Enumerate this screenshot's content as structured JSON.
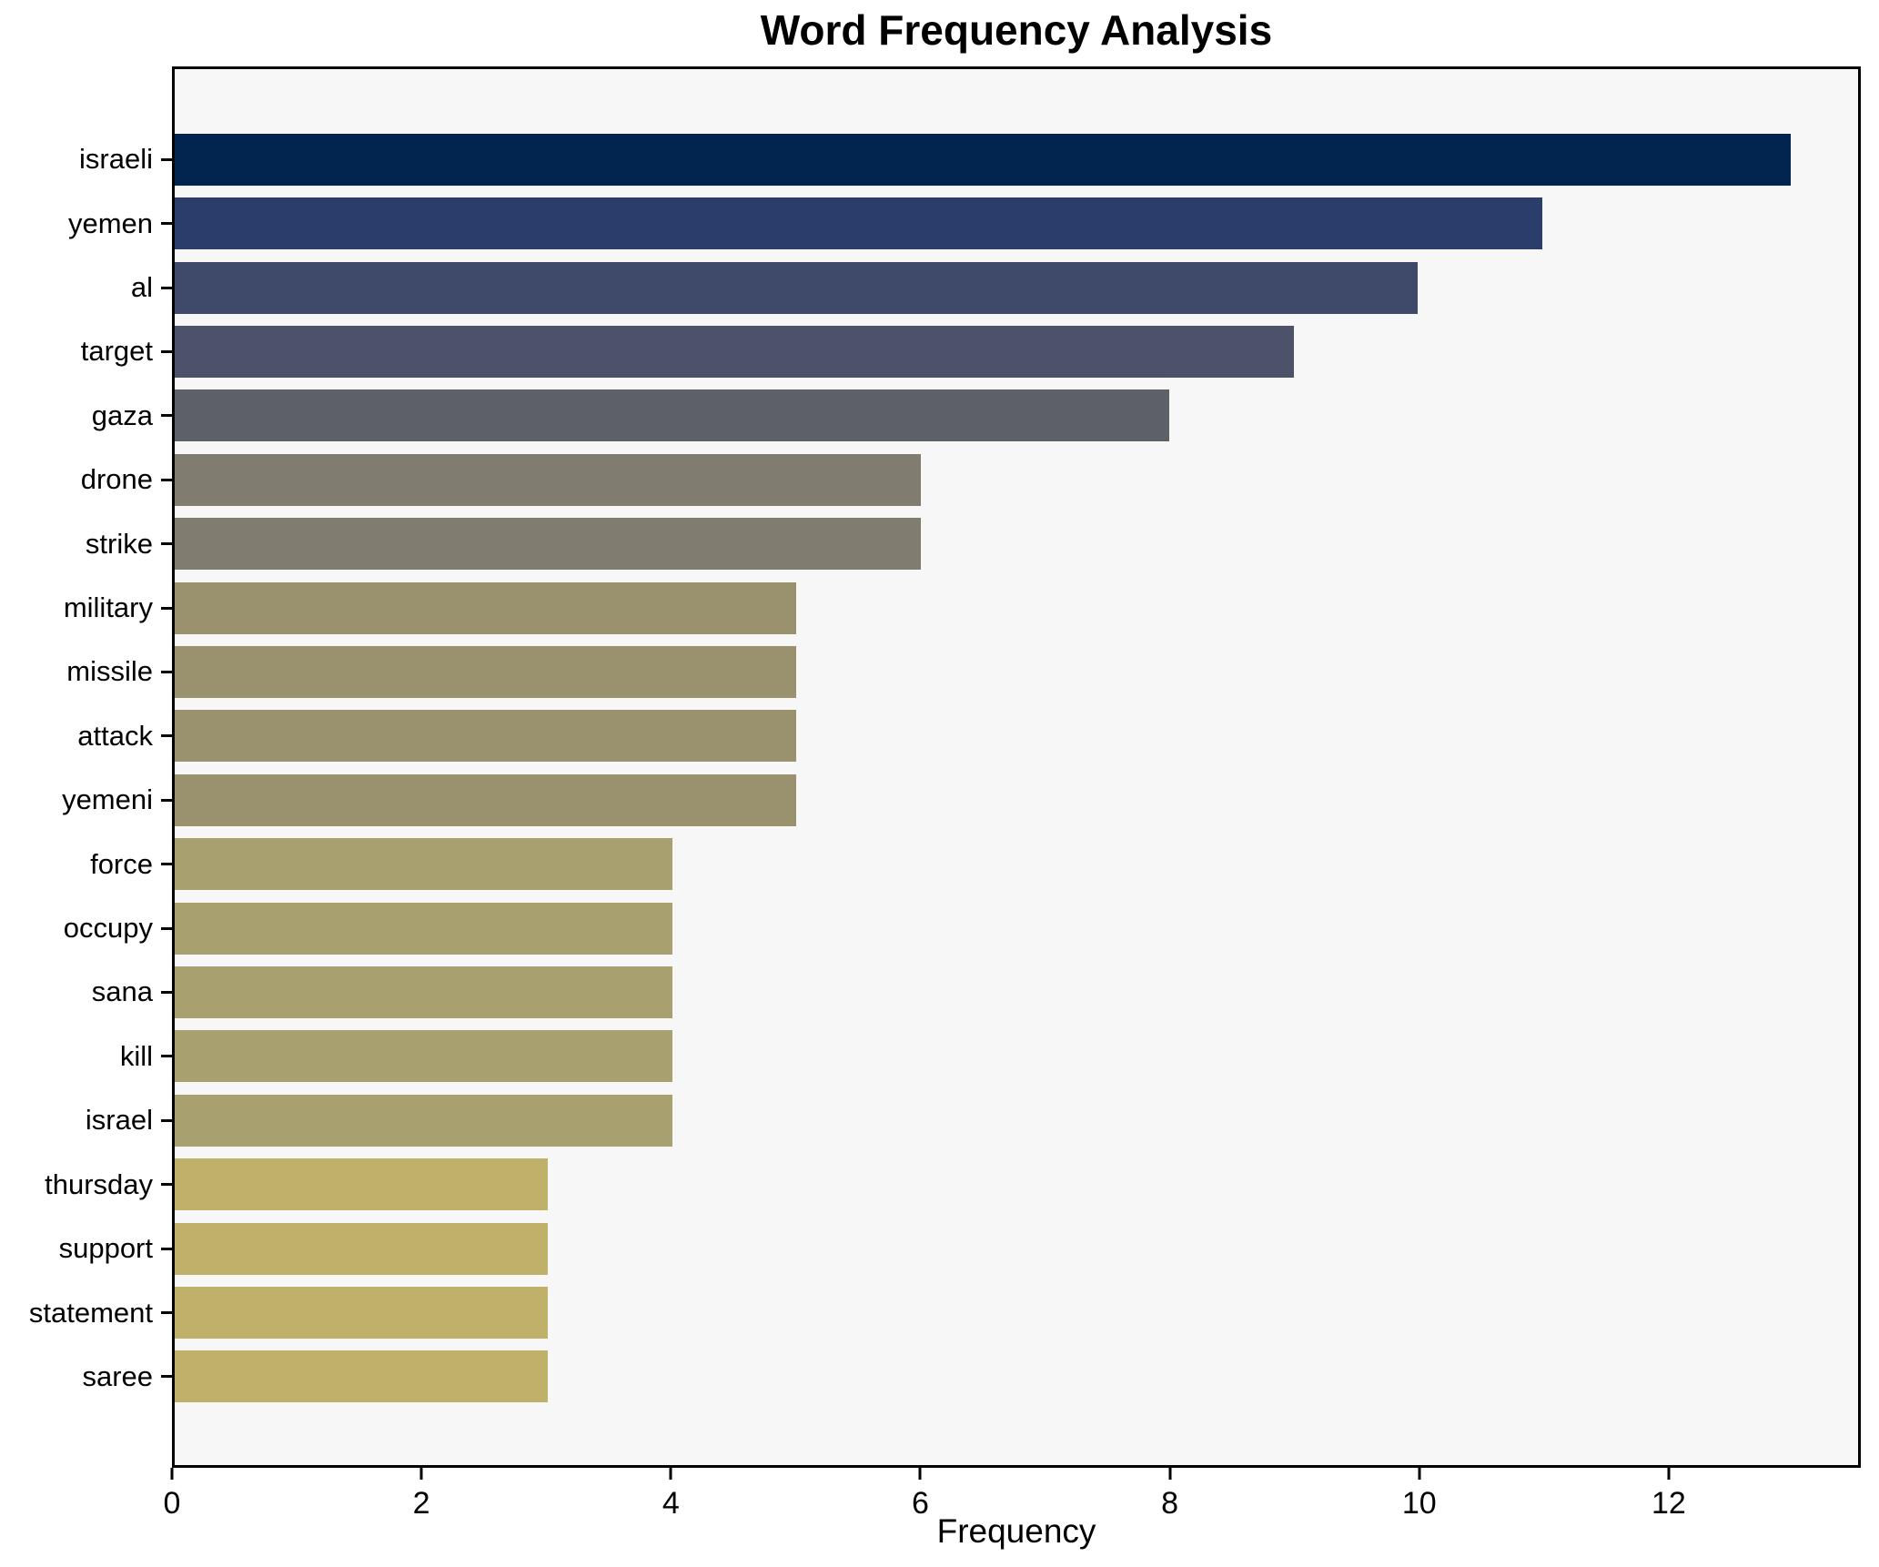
{
  "figure": {
    "background": "#ffffff"
  },
  "chart_data": {
    "type": "bar",
    "orientation": "horizontal",
    "title": "Word Frequency Analysis",
    "xlabel": "Frequency",
    "ylabel": "",
    "xlim": [
      0,
      13.54
    ],
    "x_ticks": [
      0,
      2,
      4,
      6,
      8,
      10,
      12
    ],
    "grid": false,
    "legend": false,
    "colormap": "cividis",
    "plot_background": "#f7f7f7",
    "spine_color": "#000000",
    "text_color": "#000000",
    "categories": [
      "israeli",
      "yemen",
      "al",
      "target",
      "gaza",
      "drone",
      "strike",
      "military",
      "missile",
      "attack",
      "yemeni",
      "force",
      "occupy",
      "sana",
      "kill",
      "israel",
      "thursday",
      "support",
      "statement",
      "saree"
    ],
    "values": [
      13,
      11,
      10,
      9,
      8,
      6,
      6,
      5,
      5,
      5,
      5,
      4,
      4,
      4,
      4,
      4,
      3,
      3,
      3,
      3
    ],
    "bar_colors": [
      "#02254f",
      "#2b3d6a",
      "#3f4969",
      "#4b5269",
      "#5e6068",
      "#807d70",
      "#807d70",
      "#9a916f",
      "#9a916f",
      "#9a916f",
      "#9a916f",
      "#a8a06e",
      "#a8a06e",
      "#a8a06e",
      "#a8a06e",
      "#a8a06e",
      "#bfb169",
      "#bfb169",
      "#bfb169",
      "#bfb169"
    ]
  }
}
